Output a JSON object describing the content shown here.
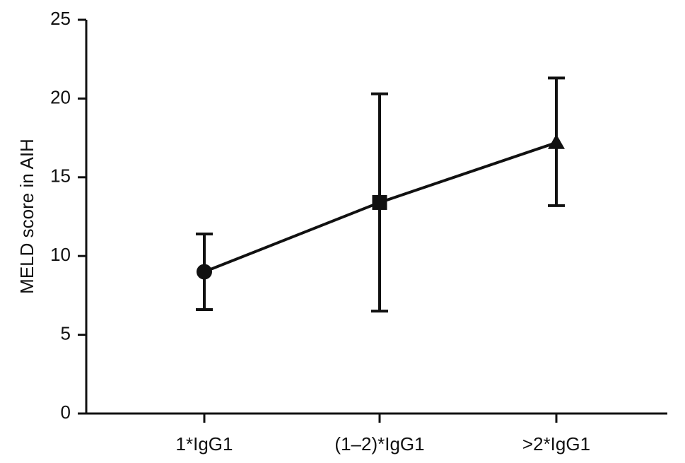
{
  "chart_data": {
    "type": "line",
    "categories": [
      "1*IgG1",
      "(1–2)*IgG1",
      ">2*IgG1"
    ],
    "ylabel": "MELD score in AIH",
    "xlabel": "",
    "ylim": [
      0,
      25
    ],
    "yticks": [
      0,
      5,
      10,
      15,
      20,
      25
    ],
    "grid": false,
    "series": [
      {
        "values": [
          9.0,
          13.4,
          17.2
        ],
        "error_low": [
          6.6,
          6.5,
          13.2
        ],
        "error_high": [
          11.4,
          20.3,
          21.3
        ],
        "markers": [
          "circle",
          "square",
          "triangle"
        ],
        "color": "#111111"
      }
    ]
  }
}
